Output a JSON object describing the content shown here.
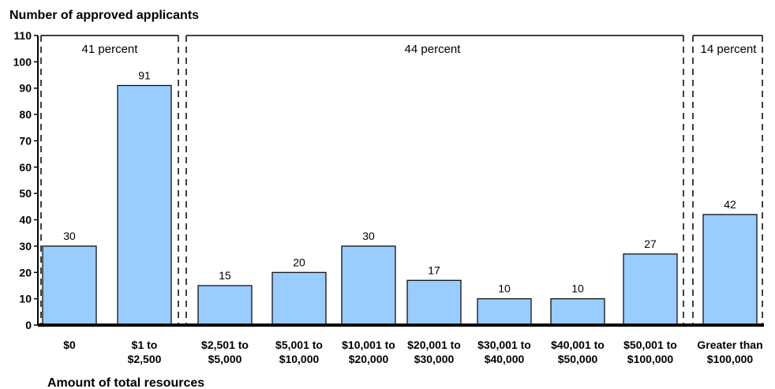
{
  "chart_data": {
    "type": "bar",
    "ylabel": "Number of approved applicants",
    "xlabel": "Amount of total resources",
    "ylim": [
      0,
      110
    ],
    "yticks": [
      0,
      10,
      20,
      30,
      40,
      50,
      60,
      70,
      80,
      90,
      100,
      110
    ],
    "categories": [
      [
        "$0"
      ],
      [
        "$1 to",
        "$2,500"
      ],
      [
        "$2,501 to",
        "$5,000"
      ],
      [
        "$5,001 to",
        "$10,000"
      ],
      [
        "$10,001 to",
        "$20,000"
      ],
      [
        "$20,001 to",
        "$30,000"
      ],
      [
        "$30,001 to",
        "$40,000"
      ],
      [
        "$40,001 to",
        "$50,000"
      ],
      [
        "$50,001 to",
        "$100,000"
      ],
      [
        "Greater than",
        "$100,000"
      ]
    ],
    "values": [
      30,
      91,
      15,
      20,
      30,
      17,
      10,
      10,
      27,
      42
    ],
    "bar_color": "#99ccff",
    "groups": [
      {
        "label": "41 percent",
        "first": 0,
        "last": 1
      },
      {
        "label": "44 percent",
        "first": 2,
        "last": 8
      },
      {
        "label": "14 percent",
        "first": 9,
        "last": 9
      }
    ]
  }
}
